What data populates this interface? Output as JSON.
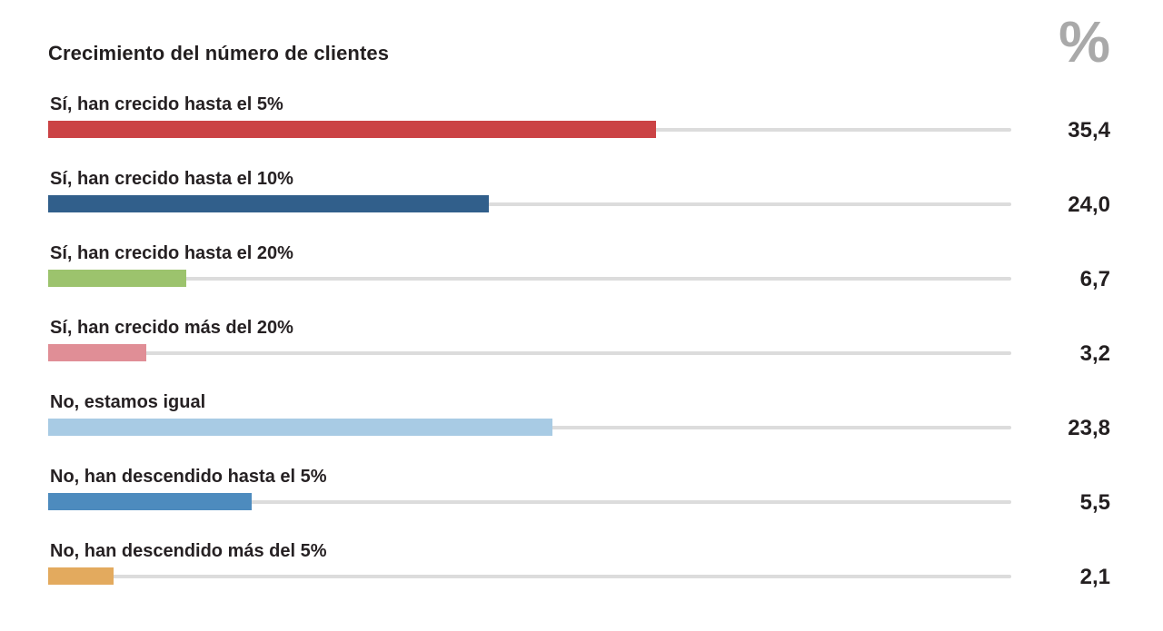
{
  "page": {
    "background_color": "#ffffff",
    "text_color": "#231f20"
  },
  "header": {
    "title": "Crecimiento del número de clientes",
    "unit_symbol": "%",
    "unit_symbol_color": "#a9a9a9"
  },
  "chart_data": {
    "type": "bar",
    "orientation": "horizontal",
    "title": "Crecimiento del número de clientes",
    "unit": "%",
    "value_format": "comma-decimal",
    "grid": "off",
    "legend": "none",
    "track_color": "#dcdcdc",
    "categories": [
      "Sí, han crecido hasta el 5%",
      "Sí, han crecido hasta el 10%",
      "Sí, han crecido hasta el 20%",
      "Sí, han crecido más del 20%",
      "No, estamos igual",
      "No, han descendido hasta el 5%",
      "No, han descendido más del 5%"
    ],
    "values": [
      35.4,
      24.0,
      6.7,
      3.2,
      23.8,
      5.5,
      2.1
    ],
    "rows": [
      {
        "label": "Sí, han crecido hasta el 5%",
        "value": 35.4,
        "value_label": "35,4",
        "color": "#cb4345",
        "bar_width_pct": 57.2
      },
      {
        "label": "Sí, han crecido hasta el 10%",
        "value": 24.0,
        "value_label": "24,0",
        "color": "#315f8b",
        "bar_width_pct": 41.5
      },
      {
        "label": "Sí, han crecido hasta el 20%",
        "value": 6.7,
        "value_label": "6,7",
        "color": "#9cc36d",
        "bar_width_pct": 13.0
      },
      {
        "label": "Sí, han crecido más del 20%",
        "value": 3.2,
        "value_label": "3,2",
        "color": "#e08e96",
        "bar_width_pct": 9.2
      },
      {
        "label": "No, estamos igual",
        "value": 23.8,
        "value_label": "23,8",
        "color": "#a8cbe4",
        "bar_width_pct": 47.5
      },
      {
        "label": "No, han descendido hasta el 5%",
        "value": 5.5,
        "value_label": "5,5",
        "color": "#4d8bbe",
        "bar_width_pct": 19.2
      },
      {
        "label": "No, han descendido más del 5%",
        "value": 2.1,
        "value_label": "2,1",
        "color": "#e3aa5e",
        "bar_width_pct": 6.2
      }
    ]
  }
}
